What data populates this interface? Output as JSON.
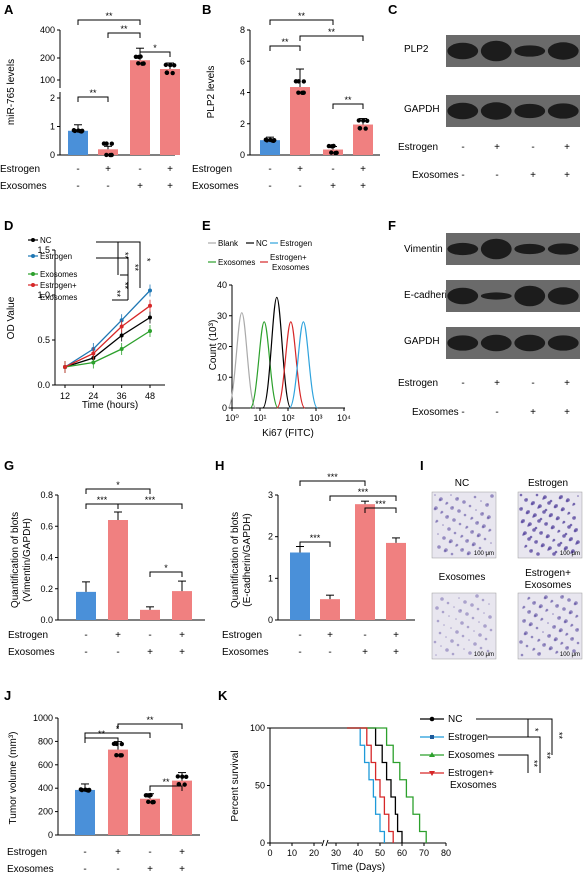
{
  "colors": {
    "blue": "#4a90d9",
    "red": "#f08080",
    "dark": "#000000"
  },
  "row_labels": {
    "estrogen": "Estrogen",
    "exosomes": "Exosomes"
  },
  "signs": {
    "four": [
      [
        "-",
        "+",
        "-",
        "+"
      ],
      [
        "-",
        "-",
        "+",
        "+"
      ]
    ]
  },
  "panels": {
    "A": {
      "letter": "A",
      "ylabel": "miR-765 levels",
      "ticks": [
        "0",
        "1",
        "2",
        "100",
        "200",
        "400"
      ],
      "values": [
        0.85,
        0.2,
        190,
        150
      ],
      "sig": [
        "**",
        "**",
        "**",
        "**",
        "*"
      ]
    },
    "B": {
      "letter": "B",
      "ylabel": "PLP2 levels",
      "ticks": [
        "0",
        "2",
        "4",
        "6",
        "8"
      ],
      "values": [
        0.95,
        4.35,
        0.35,
        1.95
      ],
      "sig": [
        "**",
        "**",
        "**",
        "**"
      ]
    },
    "C": {
      "letter": "C",
      "bands": [
        "PLP2",
        "GAPDH"
      ]
    },
    "D": {
      "letter": "D",
      "ylabel": "OD Value",
      "xlabel": "Time (hours)",
      "xticks": [
        "12",
        "24",
        "36",
        "48"
      ],
      "yticks": [
        "0.0",
        "0.5",
        "1.0",
        "1.5"
      ],
      "legend": [
        "NC",
        "Estrogen",
        "Exosomes",
        "Estrogen+",
        "Exosomes"
      ],
      "sig": [
        "**",
        "**",
        "**",
        "**",
        "*"
      ]
    },
    "E": {
      "letter": "E",
      "ylabel": "Count (10³)",
      "xlabel": "Ki67 (FITC)",
      "yticks": [
        "0",
        "10",
        "20",
        "30",
        "40"
      ],
      "xticks": [
        "10⁰",
        "10¹",
        "10²",
        "10³",
        "10⁴"
      ],
      "legend": [
        "Blank",
        "NC",
        "Estrogen",
        "Exosomes",
        "Estrogen+",
        "Exosomes"
      ]
    },
    "F": {
      "letter": "F",
      "bands": [
        "Vimentin",
        "E-cadherin",
        "GAPDH"
      ]
    },
    "G": {
      "letter": "G",
      "ylabel1": "Quantification of blots",
      "ylabel2": "(Vimentin/GAPDH)",
      "ticks": [
        "0.0",
        "0.2",
        "0.4",
        "0.6",
        "0.8"
      ],
      "values": [
        0.18,
        0.64,
        0.065,
        0.185
      ],
      "sig": [
        "*",
        "***",
        "***",
        "*"
      ]
    },
    "H": {
      "letter": "H",
      "ylabel1": "Quantification of blots",
      "ylabel2": "(E-cadherin/GAPDH)",
      "ticks": [
        "0",
        "1",
        "2",
        "3"
      ],
      "values": [
        1.62,
        0.5,
        2.78,
        1.85
      ],
      "sig": [
        "***",
        "***",
        "***",
        "***"
      ]
    },
    "I": {
      "letter": "I",
      "titles": [
        "NC",
        "Estrogen",
        "Exosomes",
        "Estrogen+",
        "Exosomes"
      ],
      "scale": "100 μm"
    },
    "J": {
      "letter": "J",
      "ylabel": "Tumor volume (mm³)",
      "ticks": [
        "0",
        "200",
        "400",
        "600",
        "800",
        "1000"
      ],
      "values": [
        385,
        730,
        310,
        465
      ],
      "sig": [
        "**",
        "*",
        "**",
        "**"
      ]
    },
    "K": {
      "letter": "K",
      "ylabel": "Percent survival",
      "xlabel": "Time (Days)",
      "yticks": [
        "0",
        "50",
        "100"
      ],
      "xticks": [
        "0",
        "10",
        "20",
        "30",
        "40",
        "50",
        "60",
        "70",
        "80"
      ],
      "legend": [
        "NC",
        "Estrogen",
        "Exosomes",
        "Estrogen+",
        "Exosomes"
      ],
      "sig": [
        "*",
        "**",
        "**",
        "**"
      ]
    }
  },
  "chart_data": [
    {
      "type": "bar",
      "panel": "A",
      "ylabel": "miR-765 levels",
      "categories": [
        "1",
        "2",
        "3",
        "4"
      ],
      "values": [
        0.85,
        0.2,
        190,
        150
      ]
    },
    {
      "type": "bar",
      "panel": "B",
      "ylabel": "PLP2 levels",
      "categories": [
        "1",
        "2",
        "3",
        "4"
      ],
      "values": [
        0.95,
        4.35,
        0.35,
        1.95
      ],
      "ylim": [
        0,
        8
      ]
    },
    {
      "type": "line",
      "panel": "D",
      "ylabel": "OD Value",
      "xlabel": "Time (hours)",
      "x": [
        12,
        24,
        36,
        48
      ],
      "series": [
        {
          "name": "NC",
          "values": [
            0.2,
            0.3,
            0.55,
            0.75
          ]
        },
        {
          "name": "Estrogen",
          "values": [
            0.2,
            0.4,
            0.72,
            1.05
          ]
        },
        {
          "name": "Exosomes",
          "values": [
            0.2,
            0.25,
            0.4,
            0.6
          ]
        },
        {
          "name": "Estrogen+ Exosomes",
          "values": [
            0.2,
            0.35,
            0.65,
            0.88
          ]
        }
      ],
      "ylim": [
        0,
        1.5
      ]
    },
    {
      "type": "line",
      "panel": "E",
      "ylabel": "Count (10³)",
      "xlabel": "Ki67 (FITC)",
      "ylim": [
        0,
        40
      ]
    },
    {
      "type": "bar",
      "panel": "G",
      "categories": [
        "1",
        "2",
        "3",
        "4"
      ],
      "values": [
        0.18,
        0.64,
        0.065,
        0.185
      ],
      "ylim": [
        0,
        0.8
      ]
    },
    {
      "type": "bar",
      "panel": "H",
      "categories": [
        "1",
        "2",
        "3",
        "4"
      ],
      "values": [
        1.62,
        0.5,
        2.78,
        1.85
      ],
      "ylim": [
        0,
        3
      ]
    },
    {
      "type": "bar",
      "panel": "J",
      "ylabel": "Tumor volume (mm³)",
      "categories": [
        "1",
        "2",
        "3",
        "4"
      ],
      "values": [
        385,
        730,
        310,
        465
      ],
      "ylim": [
        0,
        1000
      ]
    },
    {
      "type": "line",
      "panel": "K",
      "ylabel": "Percent survival",
      "xlabel": "Time (Days)",
      "ylim": [
        0,
        100
      ],
      "xlim": [
        0,
        80
      ]
    }
  ]
}
